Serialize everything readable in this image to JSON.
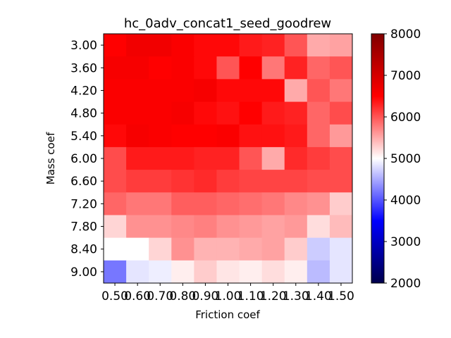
{
  "chart_data": {
    "type": "heatmap",
    "title": "hc_0adv_concat1_seed_goodrew",
    "xlabel": "Friction coef",
    "ylabel": "Mass coef",
    "x_ticks": [
      "0.50",
      "0.60",
      "0.70",
      "0.80",
      "0.90",
      "1.00",
      "1.10",
      "1.20",
      "1.30",
      "1.40",
      "1.50"
    ],
    "y_ticks": [
      "3.00",
      "3.60",
      "4.20",
      "4.80",
      "5.40",
      "6.00",
      "6.60",
      "7.20",
      "7.80",
      "8.40",
      "9.00"
    ],
    "colormap": "seismic",
    "colorbar": {
      "min": 2000,
      "max": 8000,
      "ticks": [
        "2000",
        "3000",
        "4000",
        "5000",
        "6000",
        "7000",
        "8000"
      ]
    },
    "values": [
      [
        6500,
        6650,
        6650,
        6550,
        6450,
        6450,
        6350,
        6300,
        6000,
        5500,
        5550
      ],
      [
        6600,
        6600,
        6500,
        6550,
        6450,
        6000,
        6500,
        5800,
        6300,
        5900,
        6000
      ],
      [
        6550,
        6550,
        6550,
        6550,
        6600,
        6450,
        6450,
        6450,
        5500,
        6000,
        5800
      ],
      [
        6550,
        6550,
        6550,
        6600,
        6450,
        6400,
        6500,
        6350,
        6300,
        5900,
        6050
      ],
      [
        6450,
        6600,
        6550,
        6500,
        6500,
        6550,
        6400,
        6400,
        6350,
        5900,
        5600
      ],
      [
        6050,
        6350,
        6350,
        6350,
        6300,
        6300,
        6000,
        5500,
        6250,
        6150,
        6050
      ],
      [
        6050,
        6150,
        6150,
        6200,
        6250,
        6150,
        6100,
        6100,
        6100,
        6050,
        6050
      ],
      [
        5900,
        5800,
        5800,
        5950,
        5950,
        5900,
        5850,
        5800,
        5700,
        5650,
        5300
      ],
      [
        5250,
        5650,
        5650,
        5700,
        5750,
        5650,
        5600,
        5550,
        5600,
        5200,
        5400
      ],
      [
        5000,
        5000,
        5250,
        5650,
        5450,
        5450,
        5500,
        5550,
        5300,
        4700,
        4850
      ],
      [
        4200,
        4850,
        4900,
        5100,
        5300,
        5150,
        5100,
        5200,
        5100,
        4600,
        4850
      ]
    ]
  }
}
